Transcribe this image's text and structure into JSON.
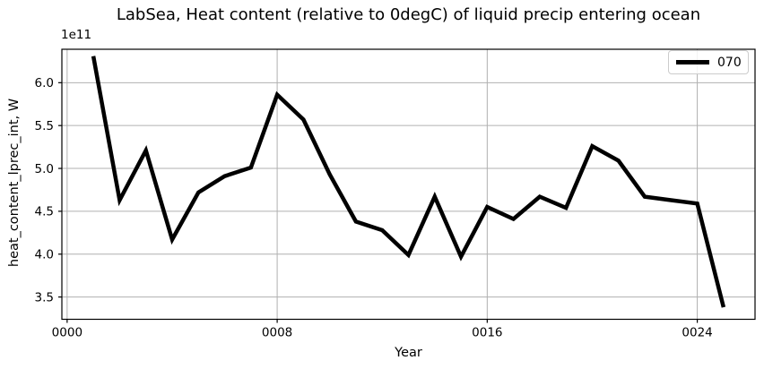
{
  "chart_data": {
    "type": "line",
    "title": "LabSea, Heat content (relative to 0degC) of liquid precip entering ocean",
    "xlabel": "Year",
    "ylabel": "heat_content_lprec_int, W",
    "y_offset_text": "1e11",
    "x": [
      1,
      2,
      3,
      4,
      5,
      6,
      7,
      8,
      9,
      10,
      11,
      12,
      13,
      14,
      15,
      16,
      17,
      18,
      19,
      20,
      21,
      22,
      23,
      24,
      25
    ],
    "series": [
      {
        "name": "070",
        "color": "#000000",
        "linewidth": 4.5,
        "values": [
          6.31,
          4.63,
          5.21,
          4.17,
          4.72,
          4.91,
          5.01,
          5.86,
          5.57,
          4.93,
          4.38,
          4.28,
          3.99,
          4.67,
          3.97,
          4.55,
          4.41,
          4.67,
          4.54,
          5.26,
          5.09,
          4.67,
          4.63,
          4.59,
          3.38
        ]
      }
    ],
    "xlim": [
      -0.2,
      26.2
    ],
    "ylim": [
      3.24,
      6.39
    ],
    "xticks": {
      "values": [
        0,
        8,
        16,
        24
      ],
      "labels": [
        "0000",
        "0008",
        "0016",
        "0024"
      ]
    },
    "yticks": {
      "values": [
        3.5,
        4.0,
        4.5,
        5.0,
        5.5,
        6.0
      ],
      "labels": [
        "3.5",
        "4.0",
        "4.5",
        "5.0",
        "5.5",
        "6.0"
      ]
    },
    "grid": true,
    "grid_color": "#b0b0b0",
    "axes_color": "#000000",
    "background": "#ffffff",
    "legend": {
      "position": "upper right",
      "entries": [
        {
          "label": "070",
          "color": "#000000"
        }
      ]
    }
  }
}
